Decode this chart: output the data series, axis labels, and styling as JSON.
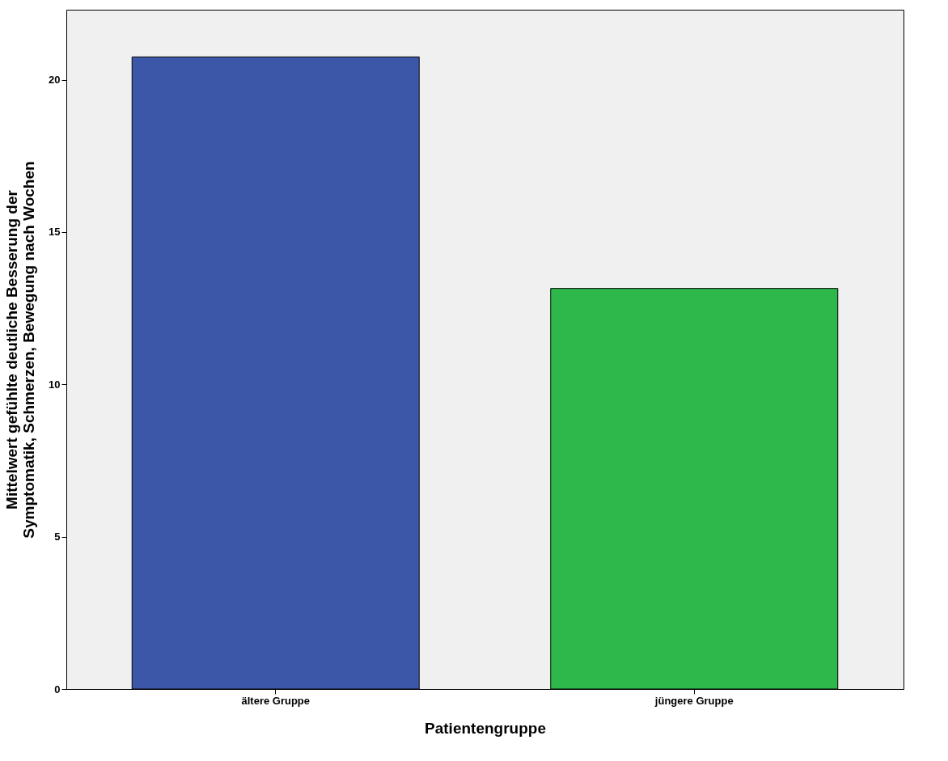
{
  "chart_data": {
    "type": "bar",
    "xlabel": "Patientengruppe",
    "ylabel": "Mittelwert gefühlte deutliche Besserung der Symptomatik, Schmerzen, Bewegung nach Wochen",
    "categories": [
      "ältere Gruppe",
      "jüngere Gruppe"
    ],
    "values": [
      20.75,
      13.15
    ],
    "colors": [
      "#3c56a8",
      "#2fb84a"
    ],
    "ylim": [
      0,
      22.3
    ],
    "yticks": [
      0,
      5,
      10,
      15,
      20
    ],
    "grid": false,
    "legend": false
  }
}
